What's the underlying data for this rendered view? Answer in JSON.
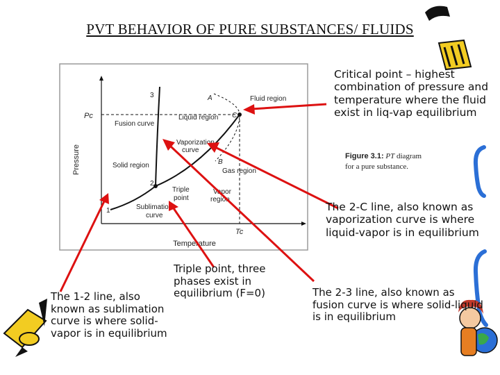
{
  "title": "PVT BEHAVIOR OF PURE SUBSTANCES/ FLUIDS",
  "figure": {
    "caption_number": "Figure 3.1:",
    "caption_pt": "PT",
    "caption_rest": "diagram for a pure substance.",
    "y_axis_label": "Pressure",
    "x_axis_label": "Temperature",
    "pc_label": "Pc",
    "tc_label": "Tc",
    "region_labels": {
      "fluid": "Fluid region",
      "liquid": "Liquid region",
      "fusion_curve": "Fusion curve",
      "vaporization_line1": "Vaporization",
      "vaporization_line2": "curve",
      "solid": "Solid region",
      "gas": "Gas region",
      "triple_line1": "Triple",
      "triple_line2": "point",
      "vapor_line1": "Vapor",
      "vapor_line2": "region",
      "sublimation_line1": "Sublimation",
      "sublimation_line2": "curve"
    },
    "point_labels": {
      "p1": "1",
      "p2": "2",
      "p3": "3",
      "a": "A",
      "b": "B",
      "c": "C"
    }
  },
  "notes": {
    "critical": "Critical point – highest combination of pressure and temperature where the fluid exist in liq-vap equilibrium",
    "vaporization": "The 2-C line, also known as vaporization curve is where liquid-vapor is in equilibrium",
    "triple": "Triple point, three phases exist in equilibrium (F=0)",
    "sublimation": "The 1-2 line, also known as sublimation curve is where solid-vapor is in equilibrium",
    "fusion": "The 2-3 line, also known as fusion curve is where solid-liquid is in equilibrium"
  },
  "colors": {
    "arrow": "#dd1111",
    "frame": "#9a9a9a",
    "curve": "#111111",
    "deco_blue": "#2b6fd6",
    "deco_yellow": "#f2cc22"
  }
}
